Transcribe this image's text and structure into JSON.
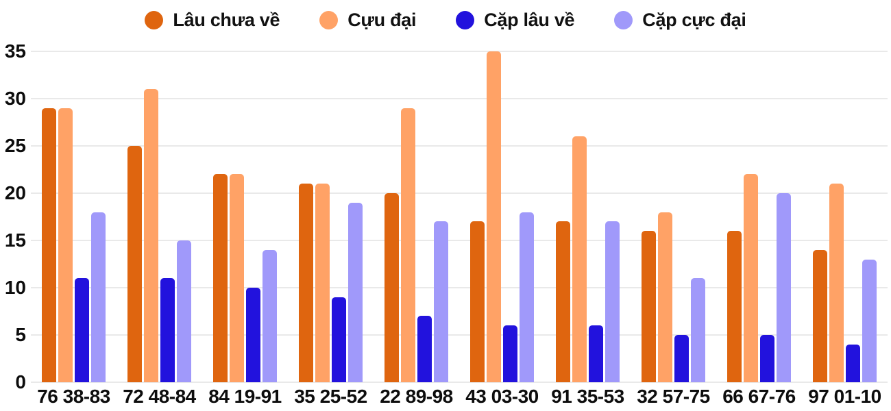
{
  "chart_data": {
    "type": "bar",
    "title": "",
    "xlabel": "",
    "ylabel": "",
    "grid": true,
    "legend_position": "top",
    "ylim": [
      0,
      35
    ],
    "yticks": [
      0,
      5,
      10,
      15,
      20,
      25,
      30,
      35
    ],
    "categories": [
      "76 38-83",
      "72 48-84",
      "84 19-91",
      "35 25-52",
      "22 89-98",
      "43 03-30",
      "91 35-53",
      "32 57-75",
      "66 67-76",
      "97 01-10"
    ],
    "series": [
      {
        "name": "Lâu chưa về",
        "color": "#df650f",
        "values": [
          29,
          25,
          22,
          21,
          20,
          17,
          17,
          16,
          16,
          14
        ]
      },
      {
        "name": "Cựu đại",
        "color": "#ffa266",
        "values": [
          29,
          31,
          22,
          21,
          29,
          35,
          26,
          18,
          22,
          21
        ]
      },
      {
        "name": "Cặp lâu về",
        "color": "#2212dd",
        "values": [
          11,
          11,
          10,
          9,
          7,
          6,
          6,
          5,
          5,
          4
        ]
      },
      {
        "name": "Cặp cực đại",
        "color": "#a099fa",
        "values": [
          18,
          15,
          14,
          19,
          17,
          18,
          17,
          11,
          20,
          13
        ]
      }
    ]
  },
  "colors": {
    "grid": "#e9e9e9",
    "text": "#0d0d0d",
    "background": "#ffffff"
  }
}
